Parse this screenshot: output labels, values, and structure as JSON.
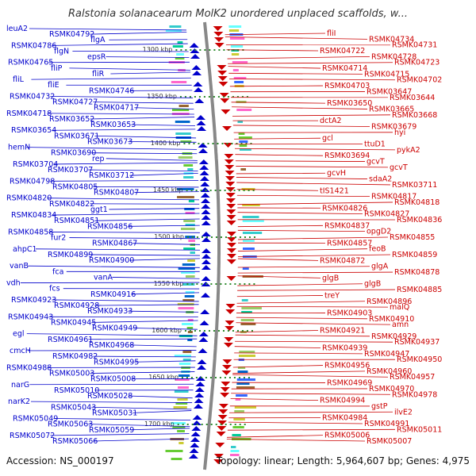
{
  "title": "Ralstonia solanacearum MolK2 unordered unplaced scaffolds, w...",
  "footer": {
    "accession": "Accession: NS_000197",
    "topology": "Topology: linear; Length: 5,964,607 bp; Genes: 4,975"
  },
  "colors": {
    "left_genes": "#0000cc",
    "right_genes": "#cc0000",
    "backbone": "#888888",
    "scale_dots": "#2e8b2e"
  },
  "scale_marks": [
    "1300 kbp",
    "1350 kbp",
    "1400 kbp",
    "1450 kbp",
    "1500 kbp",
    "1550 kbp",
    "1600 kbp",
    "1650 kbp",
    "1700 kbp"
  ],
  "left_labels": [
    "leuA2",
    "RSMK04792",
    "flgA",
    "RSMK04786",
    "flgN",
    "epsR",
    "RSMK04765",
    "fliP",
    "fliR",
    "fliL",
    "fliE",
    "RSMK04746",
    "RSMK04732",
    "RSMK04727",
    "RSMK04717",
    "RSMK04718",
    "RSMK03652",
    "RSMK03653",
    "RSMK03654",
    "RSMK03671",
    "RSMK03673",
    "hemN",
    "RSMK03690",
    "rep",
    "RSMK03704",
    "RSMK03707",
    "RSMK03712",
    "RSMK04798",
    "RSMK04805",
    "RSMK04807",
    "RSMK04820",
    "RSMK04822",
    "ggt1",
    "RSMK04834",
    "RSMK04851",
    "RSMK04856",
    "RSMK04858",
    "fur2",
    "RSMK04867",
    "ahpC1",
    "RSMK04899",
    "RSMK04900",
    "vanB",
    "fca",
    "vanA",
    "vdh",
    "fcs",
    "RSMK04916",
    "RSMK04923",
    "RSMK04928",
    "RSMK04933",
    "RSMK04943",
    "RSMK04945",
    "RSMK04949",
    "egl",
    "RSMK04961",
    "RSMK04968",
    "cmcH",
    "RSMK04982",
    "RSMK04995",
    "RSMK04988",
    "RSMK05003",
    "RSMK05008",
    "narG",
    "RSMK05010",
    "RSMK05028",
    "narK2",
    "RSMK05043",
    "RSMK05031",
    "RSMK05049",
    "RSMK05063",
    "RSMK05059",
    "RSMK05072",
    "RSMK05066"
  ],
  "right_labels": [
    "fliI",
    "RSMK04734",
    "RSMK04731",
    "RSMK04722",
    "RSMK04728",
    "RSMK04723",
    "RSMK04714",
    "RSMK04715",
    "RSMK04702",
    "RSMK04703",
    "RSMK03647",
    "RSMK03644",
    "RSMK03650",
    "RSMK03665",
    "RSMK03668",
    "dctA2",
    "RSMK03679",
    "hyi",
    "gcl",
    "ttuD1",
    "pykA2",
    "RSMK03694",
    "gcvT",
    "gcvT",
    "gcvH",
    "sdaA2",
    "RSMK03711",
    "tIS1421",
    "RSMK04817",
    "RSMK04818",
    "RSMK04826",
    "RSMK04827",
    "RSMK04836",
    "RSMK04837",
    "opgD2",
    "RSMK04855",
    "RSMK04857",
    "feoB",
    "RSMK04859",
    "RSMK04872",
    "glgA",
    "RSMK04878",
    "glgB",
    "glgB",
    "RSMK04885",
    "treY",
    "RSMK04896",
    "malQ",
    "RSMK04903",
    "RSMK04910",
    "amn",
    "RSMK04921",
    "RSMK04929",
    "RSMK04937",
    "RSMK04939",
    "RSMK04947",
    "RSMK04950",
    "RSMK04956",
    "RSMK04960",
    "RSMK04957",
    "RSMK04969",
    "RSMK04970",
    "RSMK04978",
    "RSMK04994",
    "gstP",
    "ilvE2",
    "RSMK04984",
    "RSMK04991",
    "RSMK05011",
    "RSMK05006",
    "RSMK05007"
  ]
}
